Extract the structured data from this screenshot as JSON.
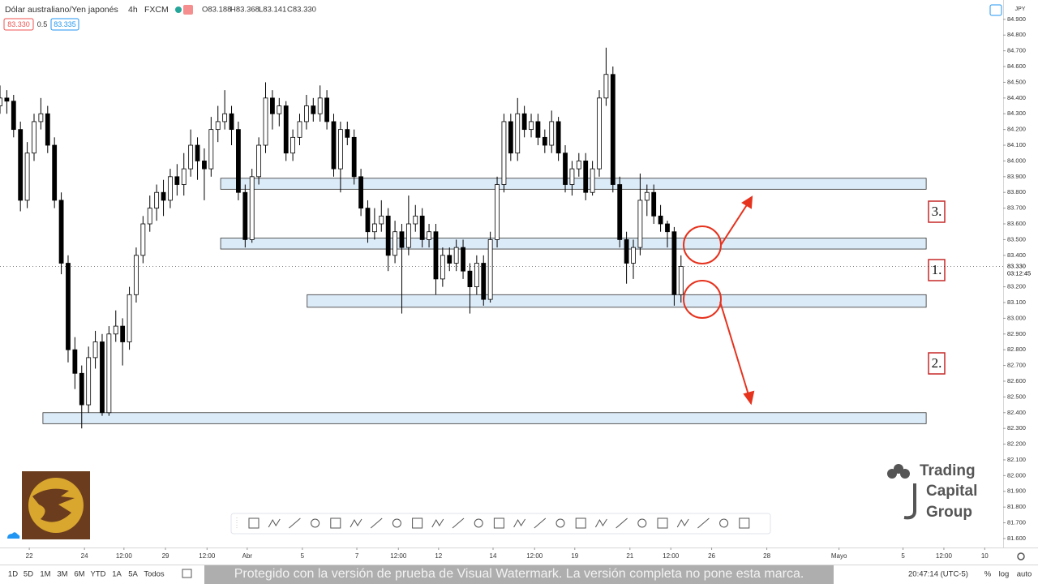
{
  "header": {
    "symbol": "Dólar australiano/Yen japonés",
    "interval": "4h",
    "exchange": "FXCM",
    "ohlc": [
      "O83.188",
      "H83.368",
      "L83.141",
      "C83.330"
    ],
    "bid": "83.330",
    "spread": "0.5",
    "ask": "83.335"
  },
  "chart_data": {
    "type": "candlestick",
    "x": [
      0,
      1,
      2,
      3,
      4,
      5,
      6,
      7,
      8,
      9,
      10,
      11,
      12,
      13,
      14,
      15,
      16,
      17,
      18,
      19,
      20,
      21,
      22,
      23,
      24,
      25,
      26,
      27,
      28,
      29,
      30,
      31,
      32,
      33,
      34,
      35,
      36,
      37,
      38,
      39,
      40,
      41,
      42,
      43,
      44,
      45,
      46,
      47,
      48,
      49,
      50,
      51,
      52,
      53,
      54,
      55,
      56,
      57,
      58,
      59,
      60,
      61,
      62,
      63,
      64,
      65,
      66,
      67,
      68,
      69,
      70,
      71,
      72,
      73,
      74,
      75,
      76,
      77,
      78,
      79,
      80,
      81,
      82,
      83,
      84,
      85,
      86,
      87,
      88,
      89,
      90,
      91,
      92,
      93,
      94,
      95,
      96,
      97,
      98,
      99,
      100
    ],
    "open": [
      84.35,
      84.4,
      84.38,
      84.2,
      83.75,
      84.05,
      84.25,
      84.3,
      84.1,
      83.75,
      83.35,
      82.8,
      82.65,
      82.45,
      82.75,
      82.85,
      82.4,
      82.9,
      82.95,
      82.85,
      83.15,
      83.4,
      83.6,
      83.7,
      83.8,
      83.75,
      83.9,
      83.85,
      83.95,
      84.1,
      84.0,
      83.95,
      84.2,
      84.25,
      84.3,
      84.2,
      83.8,
      83.5,
      83.9,
      84.1,
      84.4,
      84.3,
      84.35,
      84.05,
      84.15,
      84.25,
      84.35,
      84.3,
      84.4,
      84.25,
      83.95,
      84.2,
      84.15,
      83.9,
      83.7,
      83.55,
      83.6,
      83.65,
      83.4,
      83.55,
      83.45,
      83.6,
      83.65,
      83.5,
      83.55,
      83.25,
      83.4,
      83.35,
      83.45,
      83.3,
      83.2,
      83.35,
      83.12,
      83.5,
      83.85,
      84.25,
      84.05,
      84.3,
      84.2,
      84.25,
      84.15,
      84.1,
      84.25,
      84.05,
      83.85,
      83.95,
      84.0,
      83.8,
      83.95,
      84.4,
      84.55,
      83.85,
      83.5,
      83.35,
      83.45,
      83.75,
      83.8,
      83.65,
      83.6,
      83.55,
      83.15
    ],
    "high": [
      84.48,
      84.45,
      84.42,
      84.25,
      84.12,
      84.3,
      84.4,
      84.35,
      84.15,
      83.8,
      83.4,
      82.88,
      82.7,
      82.82,
      82.92,
      82.9,
      82.95,
      83.05,
      83.0,
      83.2,
      83.45,
      83.65,
      83.78,
      83.85,
      83.88,
      83.95,
      83.98,
      84.05,
      84.2,
      84.15,
      84.08,
      84.28,
      84.35,
      84.45,
      84.35,
      84.25,
      83.85,
      83.95,
      84.15,
      84.5,
      84.45,
      84.4,
      84.38,
      84.2,
      84.3,
      84.42,
      84.4,
      84.48,
      84.45,
      84.3,
      84.25,
      84.25,
      84.2,
      83.95,
      83.75,
      83.7,
      83.75,
      83.7,
      83.62,
      83.6,
      83.78,
      83.72,
      83.7,
      83.6,
      83.6,
      83.45,
      83.45,
      83.5,
      83.5,
      83.35,
      83.4,
      83.4,
      83.55,
      83.9,
      84.3,
      84.3,
      84.4,
      84.35,
      84.3,
      84.3,
      84.2,
      84.32,
      84.28,
      84.1,
      84.0,
      84.05,
      84.05,
      84.0,
      84.45,
      84.72,
      84.6,
      83.9,
      83.55,
      83.5,
      83.92,
      83.85,
      83.85,
      83.72,
      83.62,
      83.58,
      83.4
    ],
    "low": [
      84.3,
      84.3,
      84.15,
      83.68,
      83.7,
      84.0,
      84.2,
      84.05,
      83.7,
      83.28,
      82.72,
      82.55,
      82.3,
      82.4,
      82.68,
      82.38,
      82.38,
      82.85,
      82.7,
      82.8,
      83.1,
      83.35,
      83.55,
      83.62,
      83.65,
      83.7,
      83.78,
      83.78,
      83.9,
      83.88,
      83.75,
      83.9,
      84.12,
      84.2,
      84.1,
      83.75,
      83.45,
      83.48,
      83.85,
      84.05,
      84.2,
      84.22,
      84.0,
      84.0,
      84.1,
      84.2,
      84.25,
      84.25,
      84.2,
      83.9,
      83.8,
      84.1,
      83.85,
      83.65,
      83.48,
      83.5,
      83.55,
      83.3,
      83.35,
      83.03,
      83.4,
      83.55,
      83.45,
      83.45,
      83.15,
      83.2,
      83.3,
      83.3,
      83.25,
      83.03,
      83.15,
      83.08,
      83.1,
      83.45,
      83.8,
      84.0,
      84.0,
      84.15,
      84.15,
      84.1,
      84.05,
      84.05,
      84.0,
      83.8,
      83.78,
      83.9,
      83.75,
      83.78,
      83.9,
      84.35,
      83.8,
      83.45,
      83.22,
      83.25,
      83.4,
      83.65,
      83.6,
      83.55,
      83.45,
      83.08,
      83.1
    ],
    "close": [
      84.4,
      84.38,
      84.2,
      83.75,
      84.05,
      84.25,
      84.3,
      84.1,
      83.75,
      83.35,
      82.8,
      82.65,
      82.45,
      82.75,
      82.85,
      82.4,
      82.9,
      82.95,
      82.85,
      83.15,
      83.4,
      83.6,
      83.7,
      83.8,
      83.75,
      83.9,
      83.85,
      83.95,
      84.1,
      84.0,
      83.95,
      84.2,
      84.25,
      84.3,
      84.2,
      83.8,
      83.5,
      83.9,
      84.1,
      84.4,
      84.3,
      84.35,
      84.05,
      84.15,
      84.25,
      84.35,
      84.3,
      84.4,
      84.25,
      83.95,
      84.2,
      84.15,
      83.9,
      83.7,
      83.55,
      83.6,
      83.65,
      83.4,
      83.55,
      83.45,
      83.6,
      83.65,
      83.5,
      83.55,
      83.25,
      83.4,
      83.35,
      83.45,
      83.3,
      83.2,
      83.35,
      83.12,
      83.5,
      83.85,
      84.25,
      84.05,
      84.3,
      84.2,
      84.25,
      84.15,
      84.1,
      84.25,
      84.05,
      83.85,
      83.95,
      84.0,
      83.8,
      83.95,
      84.4,
      84.55,
      83.85,
      83.5,
      83.35,
      83.45,
      83.75,
      83.8,
      83.65,
      83.6,
      83.55,
      83.15,
      83.33
    ],
    "up_color": "#ffffff",
    "down_color": "#000000",
    "grid": false,
    "xlim": [
      0,
      147.3
    ],
    "ylim": [
      81.543,
      85.023
    ],
    "xticks": [
      {
        "value": 4.3,
        "label": "22"
      },
      {
        "value": 12.4,
        "label": "24"
      },
      {
        "value": 18.2,
        "label": "12:00"
      },
      {
        "value": 24.3,
        "label": "29"
      },
      {
        "value": 30.4,
        "label": "12:00"
      },
      {
        "value": 36.3,
        "label": "Abr"
      },
      {
        "value": 44.4,
        "label": "5"
      },
      {
        "value": 52.4,
        "label": "7"
      },
      {
        "value": 58.5,
        "label": "12:00"
      },
      {
        "value": 64.4,
        "label": "12"
      },
      {
        "value": 72.4,
        "label": "14"
      },
      {
        "value": 78.5,
        "label": "12:00"
      },
      {
        "value": 84.4,
        "label": "19"
      },
      {
        "value": 92.5,
        "label": "21"
      },
      {
        "value": 98.5,
        "label": "12:00"
      },
      {
        "value": 104.5,
        "label": "26"
      },
      {
        "value": 112.6,
        "label": "28"
      },
      {
        "value": 123.2,
        "label": "Mayo"
      },
      {
        "value": 132.6,
        "label": "5"
      },
      {
        "value": 138.6,
        "label": "12:00"
      },
      {
        "value": 144.6,
        "label": "10"
      }
    ],
    "yticks": [
      {
        "value": 84.9,
        "label": "84.900"
      },
      {
        "value": 84.8,
        "label": "84.800"
      },
      {
        "value": 84.7,
        "label": "84.700"
      },
      {
        "value": 84.6,
        "label": "84.600"
      },
      {
        "value": 84.5,
        "label": "84.500"
      },
      {
        "value": 84.4,
        "label": "84.400"
      },
      {
        "value": 84.3,
        "label": "84.300"
      },
      {
        "value": 84.2,
        "label": "84.200"
      },
      {
        "value": 84.1,
        "label": "84.100"
      },
      {
        "value": 84.0,
        "label": "84.000"
      },
      {
        "value": 83.9,
        "label": "83.900"
      },
      {
        "value": 83.8,
        "label": "83.800"
      },
      {
        "value": 83.7,
        "label": "83.700"
      },
      {
        "value": 83.6,
        "label": "83.600"
      },
      {
        "value": 83.5,
        "label": "83.500"
      },
      {
        "value": 83.4,
        "label": "83.400"
      },
      {
        "value": 83.2,
        "label": "83.200"
      },
      {
        "value": 83.1,
        "label": "83.100"
      },
      {
        "value": 83.0,
        "label": "83.000"
      },
      {
        "value": 82.9,
        "label": "82.900"
      },
      {
        "value": 82.8,
        "label": "82.800"
      },
      {
        "value": 82.7,
        "label": "82.700"
      },
      {
        "value": 82.6,
        "label": "82.600"
      },
      {
        "value": 82.5,
        "label": "82.500"
      },
      {
        "value": 82.4,
        "label": "82.400"
      },
      {
        "value": 82.3,
        "label": "82.300"
      },
      {
        "value": 82.2,
        "label": "82.200"
      },
      {
        "value": 82.1,
        "label": "82.100"
      },
      {
        "value": 82.0,
        "label": "82.000"
      },
      {
        "value": 81.9,
        "label": "81.900"
      },
      {
        "value": 81.8,
        "label": "81.800"
      },
      {
        "value": 81.7,
        "label": "81.700"
      },
      {
        "value": 81.6,
        "label": "81.600"
      }
    ],
    "zones": [
      {
        "x": [
          32.4,
          136
        ],
        "y": [
          83.82,
          83.89
        ]
      },
      {
        "x": [
          32.4,
          136
        ],
        "y": [
          83.44,
          83.51
        ]
      },
      {
        "x": [
          45.1,
          136
        ],
        "y": [
          83.07,
          83.15
        ]
      },
      {
        "x": [
          6.3,
          136
        ],
        "y": [
          82.33,
          82.4
        ]
      }
    ],
    "zone_color": "#dcebf8",
    "zone_labels": [
      "3.",
      "1.",
      "2."
    ],
    "last_price": {
      "value": 83.33,
      "label": "83.330"
    },
    "countdown": "03:12:45",
    "currency": "JPY"
  },
  "logo": [
    "Trading",
    "Capital",
    "Group"
  ],
  "footer": {
    "ranges": [
      "1D",
      "5D",
      "1M",
      "3M",
      "6M",
      "YTD",
      "1A",
      "5A",
      "Todos"
    ],
    "clock": "20:47:14 (UTC-5)",
    "scale_options": [
      "%",
      "log",
      "auto"
    ]
  },
  "watermark": "Protegido con la versión de prueba de Visual Watermark. La versión completa no pone esta marca."
}
